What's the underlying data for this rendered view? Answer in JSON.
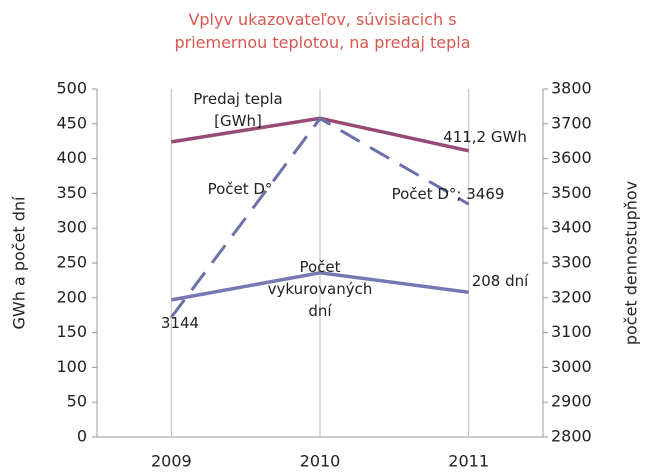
{
  "chart_data": {
    "type": "line",
    "title": "Vplyv ukazovateľov, súvisiacich s priemernou teplotou, na predaj tepla",
    "categories": [
      "2009",
      "2010",
      "2011"
    ],
    "ylabel": "GWh a počet dní",
    "y2label": "počet dennostupňov",
    "ylim": [
      0,
      500
    ],
    "yticks": [
      0,
      50,
      100,
      150,
      200,
      250,
      300,
      350,
      400,
      450,
      500
    ],
    "y2lim": [
      2800,
      3800
    ],
    "y2ticks": [
      2800,
      2900,
      3000,
      3100,
      3200,
      3300,
      3400,
      3500,
      3600,
      3700,
      3800
    ],
    "grid": true,
    "series": [
      {
        "name": "Predaj tepla [GWh]",
        "color": "#974a78",
        "dash": false,
        "values": [
          424,
          458,
          411.2
        ],
        "value_labels": [
          null,
          null,
          "411,2 GWh"
        ]
      },
      {
        "name": "Počet vykurovaných dní",
        "color": "#7479b4",
        "dash": false,
        "values": [
          197,
          236,
          208
        ],
        "value_labels": [
          null,
          null,
          "208 dní"
        ]
      },
      {
        "name": "Počet D°",
        "color": "#6a72a8",
        "dash": true,
        "axis": "y2",
        "values": [
          3144,
          3715,
          3469
        ],
        "value_labels": [
          "3144",
          null,
          "Počet D°; 3469"
        ]
      }
    ]
  }
}
